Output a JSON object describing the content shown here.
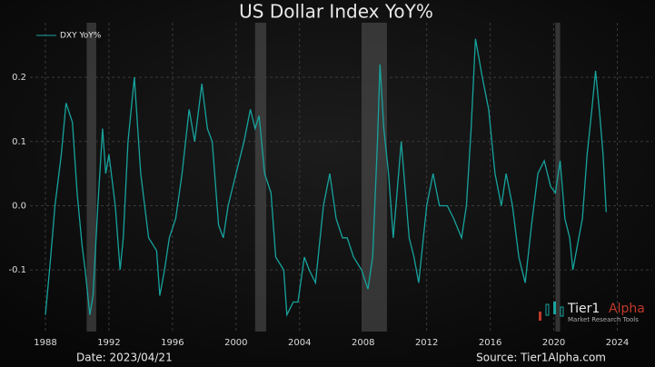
{
  "chart_data": {
    "type": "line",
    "title": "US Dollar Index YoY%",
    "footer_left": "Date: 2023/04/21",
    "footer_right": "Source: Tier1Alpha.com",
    "logo": {
      "name_a": "Tier1",
      "name_b": "Alpha",
      "tagline": "Market Research Tools"
    },
    "legend_position": "upper left",
    "grid": true,
    "xlim": [
      1987.03,
      2026.2
    ],
    "xticks": [
      1988,
      1992,
      1996,
      2000,
      2004,
      2008,
      2012,
      2016,
      2020,
      2024
    ],
    "ylim": [
      -0.196,
      0.285
    ],
    "yticks": [
      -0.1,
      {
        "value": 0,
        "label": "0.0"
      },
      0.1,
      0.2
    ],
    "shaded_x_ranges": [
      [
        1990.6,
        1991.2
      ],
      [
        2001.2,
        2001.9
      ],
      [
        2007.9,
        2009.5
      ],
      [
        2020.1,
        2020.4
      ]
    ],
    "x": [
      1988.0,
      1988.3,
      1988.6,
      1989.0,
      1989.3,
      1989.7,
      1990.0,
      1990.3,
      1990.5,
      1990.8,
      1991.0,
      1991.3,
      1991.6,
      1991.8,
      1992.0,
      1992.4,
      1992.7,
      1992.9,
      1993.2,
      1993.6,
      1994.0,
      1994.5,
      1995.0,
      1995.2,
      1995.5,
      1995.8,
      1996.2,
      1996.6,
      1997.05,
      1997.4,
      1997.85,
      1998.2,
      1998.5,
      1998.9,
      1999.2,
      1999.5,
      2000.0,
      2000.5,
      2000.9,
      2001.2,
      2001.45,
      2001.8,
      2002.2,
      2002.5,
      2003.0,
      2003.2,
      2003.6,
      2003.9,
      2004.3,
      2004.6,
      2005.0,
      2005.5,
      2005.9,
      2006.3,
      2006.7,
      2007.0,
      2007.4,
      2007.9,
      2008.3,
      2008.6,
      2008.9,
      2009.06,
      2009.3,
      2009.6,
      2009.9,
      2010.4,
      2010.9,
      2011.2,
      2011.5,
      2012.0,
      2012.4,
      2012.8,
      2013.3,
      2013.7,
      2014.2,
      2014.5,
      2014.8,
      2015.07,
      2015.5,
      2015.9,
      2016.3,
      2016.7,
      2017.0,
      2017.4,
      2017.8,
      2018.2,
      2018.6,
      2019.0,
      2019.4,
      2019.8,
      2020.1,
      2020.4,
      2020.7,
      2021.0,
      2021.2,
      2021.5,
      2021.8,
      2022.1,
      2022.4,
      2022.63,
      2022.9,
      2023.1,
      2023.3
    ],
    "series": [
      {
        "name": "DXY YoY%",
        "color": "#17a39d",
        "values": [
          -0.17,
          -0.09,
          0.0,
          0.08,
          0.16,
          0.13,
          0.02,
          -0.06,
          -0.1,
          -0.17,
          -0.14,
          0.0,
          0.12,
          0.05,
          0.08,
          0.0,
          -0.1,
          -0.05,
          0.1,
          0.2,
          0.05,
          -0.05,
          -0.07,
          -0.14,
          -0.1,
          -0.05,
          -0.02,
          0.05,
          0.15,
          0.1,
          0.19,
          0.12,
          0.1,
          -0.03,
          -0.05,
          0.0,
          0.05,
          0.1,
          0.15,
          0.12,
          0.14,
          0.05,
          0.02,
          -0.08,
          -0.1,
          -0.17,
          -0.15,
          -0.15,
          -0.08,
          -0.1,
          -0.12,
          0.0,
          0.05,
          -0.02,
          -0.05,
          -0.05,
          -0.08,
          -0.1,
          -0.13,
          -0.08,
          0.1,
          0.22,
          0.12,
          0.05,
          -0.05,
          0.1,
          -0.05,
          -0.08,
          -0.12,
          0.0,
          0.05,
          0.0,
          0.0,
          -0.02,
          -0.05,
          0.0,
          0.12,
          0.26,
          0.2,
          0.15,
          0.05,
          0.0,
          0.05,
          0.0,
          -0.08,
          -0.12,
          -0.03,
          0.05,
          0.07,
          0.03,
          0.02,
          0.07,
          -0.02,
          -0.05,
          -0.1,
          -0.06,
          -0.02,
          0.08,
          0.15,
          0.21,
          0.14,
          0.08,
          -0.01
        ]
      }
    ]
  }
}
